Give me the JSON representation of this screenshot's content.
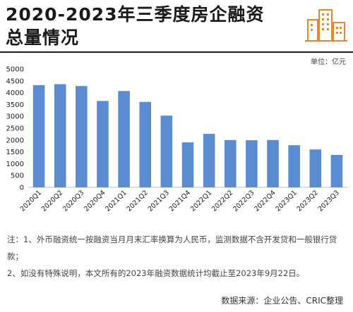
{
  "header": {
    "title_line1": "2020-2023年三季度房企融资",
    "title_line2": "总量情况",
    "unit": "单位：亿元"
  },
  "colors": {
    "bar": "#5b8bd0",
    "accent": "#e8862e",
    "text": "#1a1a1a"
  },
  "chart_data": {
    "type": "bar",
    "title": "2020-2023年三季度房企融资总量情况",
    "xlabel": "",
    "ylabel": "",
    "unit": "亿元",
    "ylim": [
      0,
      5000
    ],
    "yticks": [
      0,
      500,
      1000,
      1500,
      2000,
      2500,
      3000,
      3500,
      4000,
      4500,
      5000
    ],
    "grid": false,
    "legend": "none",
    "categories": [
      "2020Q1",
      "2020Q2",
      "2020Q3",
      "2020Q4",
      "2021Q1",
      "2021Q2",
      "2021Q3",
      "2021Q4",
      "2022Q1",
      "2022Q2",
      "2022Q3",
      "2022Q4",
      "2023Q1",
      "2023Q2",
      "2023Q3"
    ],
    "values": [
      4320,
      4360,
      4280,
      3650,
      4070,
      3610,
      3030,
      1900,
      2260,
      2000,
      1990,
      2000,
      1780,
      1600,
      1370
    ]
  },
  "footer": {
    "note1": "注：1、外币融资统一按融资当月月末汇率换算为人民币，监测数据不含开发贷和一般银行贷款；",
    "note2": "2、如没有特殊说明，本文所有的2023年融资数据统计均截止至2023年9月22日。",
    "source": "数据来源：企业公告、CRIC整理"
  }
}
